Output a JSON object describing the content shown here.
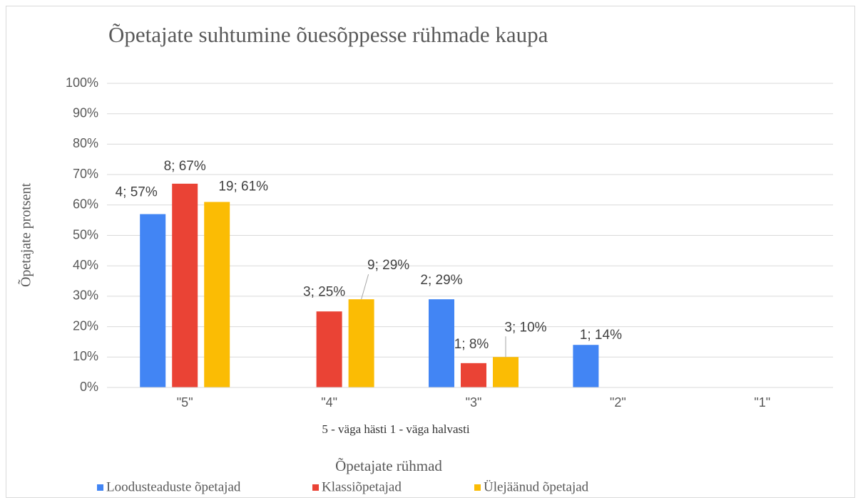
{
  "chart_data": {
    "type": "bar",
    "title": "Õpetajate suhtumine õuesõppesse rühmade kaupa",
    "subtitle": "5 - väga hästi  1 - väga halvasti",
    "x_label": "Õpetajate rühmad",
    "y_label": "Õpetajate protsent",
    "categories": [
      "\"5\"",
      "\"4\"",
      "\"3\"",
      "\"2\"",
      "\"1\""
    ],
    "series": [
      {
        "name": "Loodusteaduste õpetajad",
        "color": "#4285f4",
        "values": [
          57,
          null,
          29,
          14,
          null
        ],
        "value_labels": [
          "4; 57%",
          null,
          "2; 29%",
          "1; 14%",
          null
        ]
      },
      {
        "name": "Klassiõpetajad",
        "color": "#ea4335",
        "values": [
          67,
          25,
          8,
          null,
          null
        ],
        "value_labels": [
          "8; 67%",
          "3; 25%",
          "1; 8%",
          null,
          null
        ]
      },
      {
        "name": "Ülejäänud õpetajad",
        "color": "#fbbc04",
        "values": [
          61,
          29,
          10,
          null,
          null
        ],
        "value_labels": [
          "19; 61%",
          "9; 29%",
          "3; 10%",
          null,
          null
        ]
      }
    ],
    "ylim": [
      0,
      100
    ],
    "yticks": [
      {
        "value": 0,
        "label": "0%"
      },
      {
        "value": 10,
        "label": "10%"
      },
      {
        "value": 20,
        "label": "20%"
      },
      {
        "value": 30,
        "label": "30%"
      },
      {
        "value": 40,
        "label": "40%"
      },
      {
        "value": 50,
        "label": "50%"
      },
      {
        "value": 60,
        "label": "60%"
      },
      {
        "value": 70,
        "label": "70%"
      },
      {
        "value": 80,
        "label": "80%"
      },
      {
        "value": 90,
        "label": "90%"
      },
      {
        "value": 100,
        "label": "100%"
      }
    ],
    "grid": true,
    "legend": "bottom"
  }
}
